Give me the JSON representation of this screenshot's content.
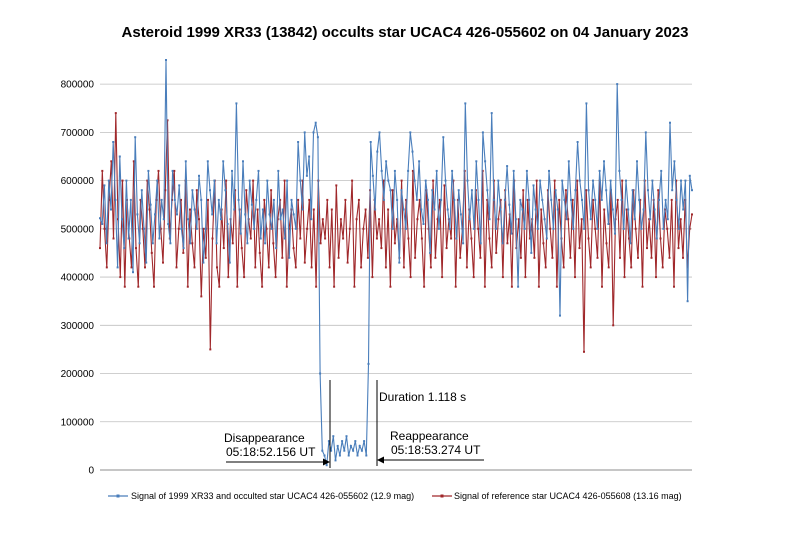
{
  "chart_data": {
    "type": "line",
    "title": "Asteroid 1999 XR33 (13842) occults star UCAC4 426-055602 on 04 January 2023",
    "xlabel": "",
    "ylabel": "",
    "ylim": [
      0,
      850000
    ],
    "y_ticks": [
      "0",
      "100000",
      "200000",
      "300000",
      "400000",
      "500000",
      "600000",
      "700000",
      "800000"
    ],
    "grid": "horizontal",
    "legend": "bottom",
    "colors": {
      "target": "#4a7ebb",
      "reference": "#a0282b"
    },
    "series": [
      {
        "name": "Signal of 1999 XR33 and occulted star UCAC4 426-055602 (12.9 mag)",
        "key": "target",
        "values": [
          522000,
          510000,
          590000,
          470000,
          600000,
          540000,
          680000,
          560000,
          420000,
          650000,
          520000,
          460000,
          600000,
          480000,
          560000,
          410000,
          690000,
          530000,
          470000,
          580000,
          500000,
          430000,
          620000,
          550000,
          470000,
          530000,
          600000,
          480000,
          560000,
          520000,
          850000,
          510000,
          470000,
          620000,
          560000,
          530000,
          590000,
          500000,
          460000,
          640000,
          520000,
          470000,
          580000,
          540000,
          500000,
          610000,
          560000,
          430000,
          500000,
          640000,
          580000,
          530000,
          600000,
          470000,
          560000,
          520000,
          640000,
          580000,
          510000,
          430000,
          620000,
          540000,
          760000,
          560000,
          490000,
          640000,
          530000,
          470000,
          600000,
          550000,
          500000,
          560000,
          620000,
          480000,
          540000,
          470000,
          600000,
          530000,
          500000,
          560000,
          460000,
          620000,
          520000,
          540000,
          480000,
          600000,
          440000,
          560000,
          530000,
          500000,
          680000,
          600000,
          540000,
          700000,
          610000,
          650000,
          520000,
          700000,
          720000,
          690000,
          200000,
          40000,
          30000,
          10000,
          60000,
          40000,
          70000,
          20000,
          50000,
          30000,
          60000,
          40000,
          70000,
          30000,
          50000,
          40000,
          60000,
          30000,
          50000,
          40000,
          60000,
          30000,
          220000,
          680000,
          610000,
          540000,
          660000,
          700000,
          620000,
          560000,
          640000,
          600000,
          580000,
          500000,
          620000,
          560000,
          430000,
          580000,
          540000,
          500000,
          620000,
          700000,
          660000,
          600000,
          560000,
          640000,
          540000,
          510000,
          600000,
          560000,
          450000,
          580000,
          540000,
          620000,
          500000,
          560000,
          690000,
          600000,
          540000,
          500000,
          620000,
          560000,
          480000,
          580000,
          530000,
          470000,
          760000,
          600000,
          520000,
          580000,
          500000,
          640000,
          560000,
          470000,
          700000,
          640000,
          580000,
          520000,
          740000,
          560000,
          500000,
          600000,
          540000,
          470000,
          560000,
          630000,
          550000,
          490000,
          620000,
          520000,
          380000,
          560000,
          540000,
          500000,
          620000,
          560000,
          450000,
          590000,
          540000,
          500000,
          600000,
          560000,
          520000,
          480000,
          620000,
          560000,
          500000,
          580000,
          540000,
          320000,
          600000,
          560000,
          520000,
          640000,
          560000,
          500000,
          580000,
          680000,
          600000,
          560000,
          500000,
          760000,
          580000,
          520000,
          600000,
          560000,
          500000,
          620000,
          560000,
          640000,
          580000,
          510000,
          600000,
          540000,
          490000,
          800000,
          620000,
          560000,
          500000,
          600000,
          540000,
          470000,
          580000,
          520000,
          640000,
          560000,
          500000,
          540000,
          700000,
          580000,
          520000,
          600000,
          540000,
          480000,
          560000,
          620000,
          500000,
          560000,
          520000,
          720000,
          580000,
          640000,
          560000,
          500000,
          600000,
          540000,
          600000,
          350000,
          610000,
          580000
        ],
        "y_axis_readable_min": 0
      },
      {
        "name": "Signal of reference star UCAC4 426-055608 (13.16 mag)",
        "key": "reference",
        "values": [
          460000,
          620000,
          500000,
          420000,
          560000,
          640000,
          480000,
          740000,
          520000,
          400000,
          600000,
          380000,
          560000,
          480000,
          420000,
          640000,
          460000,
          380000,
          560000,
          500000,
          420000,
          600000,
          540000,
          450000,
          380000,
          560000,
          620000,
          500000,
          430000,
          580000,
          725000,
          480000,
          560000,
          620000,
          420000,
          500000,
          560000,
          450000,
          600000,
          380000,
          540000,
          470000,
          420000,
          580000,
          520000,
          360000,
          500000,
          440000,
          560000,
          250000,
          480000,
          600000,
          420000,
          380000,
          540000,
          460000,
          600000,
          400000,
          520000,
          470000,
          580000,
          380000,
          540000,
          460000,
          400000,
          580000,
          520000,
          480000,
          600000,
          420000,
          540000,
          450000,
          380000,
          560000,
          500000,
          420000,
          580000,
          470000,
          400000,
          520000,
          560000,
          440000,
          600000,
          380000,
          500000,
          540000,
          460000,
          420000,
          560000,
          480000,
          600000,
          430000,
          500000,
          560000,
          420000,
          540000,
          380000,
          600000,
          470000,
          520000,
          480000,
          560000,
          420000,
          540000,
          380000,
          590000,
          440000,
          520000,
          480000,
          560000,
          430000,
          500000,
          600000,
          380000,
          520000,
          560000,
          420000,
          500000,
          540000,
          440000,
          580000,
          400000,
          560000,
          480000,
          520000,
          460000,
          600000,
          420000,
          540000,
          380000,
          580000,
          470000,
          520000,
          440000,
          600000,
          420000,
          560000,
          480000,
          400000,
          620000,
          440000,
          520000,
          560000,
          480000,
          380000,
          580000,
          500000,
          420000,
          600000,
          440000,
          520000,
          560000,
          400000,
          590000,
          460000,
          520000,
          480000,
          600000,
          380000,
          560000,
          440000,
          500000,
          620000,
          420000,
          540000,
          480000,
          400000,
          580000,
          500000,
          440000,
          620000,
          380000,
          560000,
          480000,
          420000,
          600000,
          450000,
          520000,
          560000,
          400000,
          580000,
          470000,
          530000,
          380000,
          600000,
          460000,
          520000,
          440000,
          580000,
          400000,
          560000,
          480000,
          520000,
          440000,
          600000,
          380000,
          540000,
          470000,
          420000,
          580000,
          500000,
          440000,
          600000,
          380000,
          560000,
          480000,
          420000,
          580000,
          520000,
          440000,
          560000,
          400000,
          600000,
          460000,
          520000,
          245000,
          580000,
          480000,
          420000,
          560000,
          500000,
          440000,
          600000,
          380000,
          540000,
          470000,
          420000,
          580000,
          300000,
          520000,
          560000,
          440000,
          600000,
          400000,
          540000,
          480000,
          420000,
          580000,
          500000,
          440000,
          560000,
          380000,
          600000,
          460000,
          520000,
          440000,
          560000,
          400000,
          580000,
          480000,
          420000,
          540000,
          500000,
          440000,
          560000,
          380000,
          600000,
          460000,
          520000,
          440000,
          560000,
          420000,
          500000,
          530000
        ],
        "y_axis_readable_min": 0
      }
    ],
    "annotations": [
      {
        "key": "duration",
        "text": "Duration 1.118 s"
      },
      {
        "key": "disappearance_label",
        "text": "Disappearance"
      },
      {
        "key": "disappearance_time",
        "text": "05:18:52.156 UT"
      },
      {
        "key": "reappearance_label",
        "text": "Reappearance"
      },
      {
        "key": "reappearance_time",
        "text": "05:18:53.274 UT"
      }
    ]
  }
}
